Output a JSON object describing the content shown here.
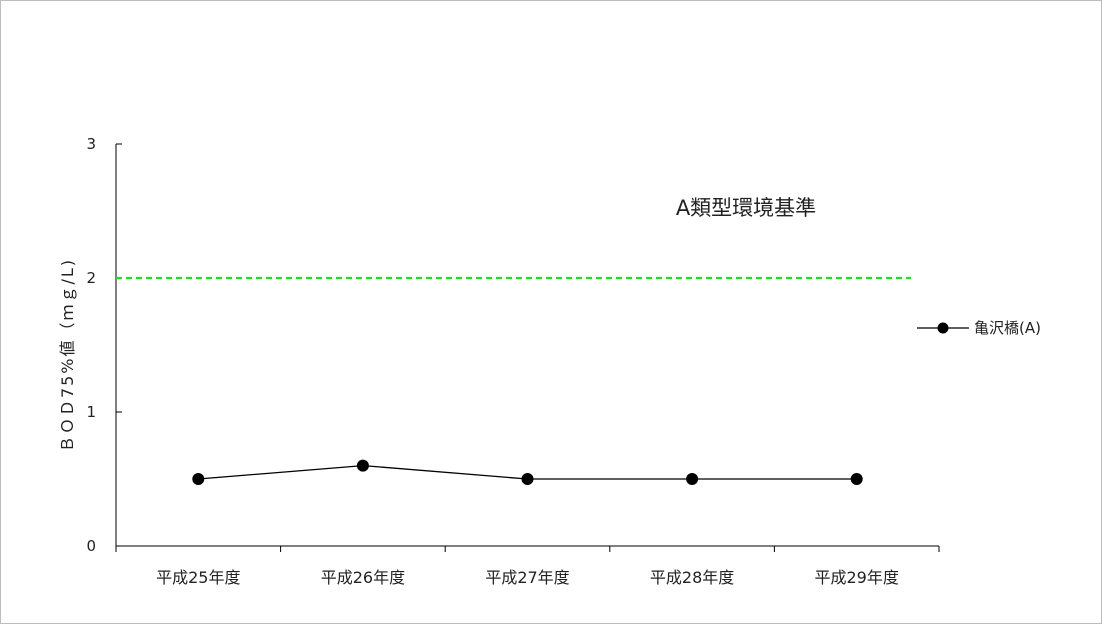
{
  "chart_data": {
    "type": "line",
    "categories": [
      "平成25年度",
      "平成26年度",
      "平成27年度",
      "平成28年度",
      "平成29年度"
    ],
    "series": [
      {
        "name": "亀沢橋(A)",
        "values": [
          0.5,
          0.6,
          0.5,
          0.5,
          0.5
        ],
        "color": "#000000"
      }
    ],
    "ylabel": "ＢＯＤ75%値（ｍｇ/L)",
    "xlabel": "",
    "ylim": [
      0,
      3
    ],
    "yticks": [
      0,
      1,
      2,
      3
    ],
    "reference_line": {
      "value": 2,
      "label": "A類型環境基準",
      "color": "#22dd22",
      "style": "dashed"
    },
    "grid": false,
    "legend_position": "right"
  }
}
